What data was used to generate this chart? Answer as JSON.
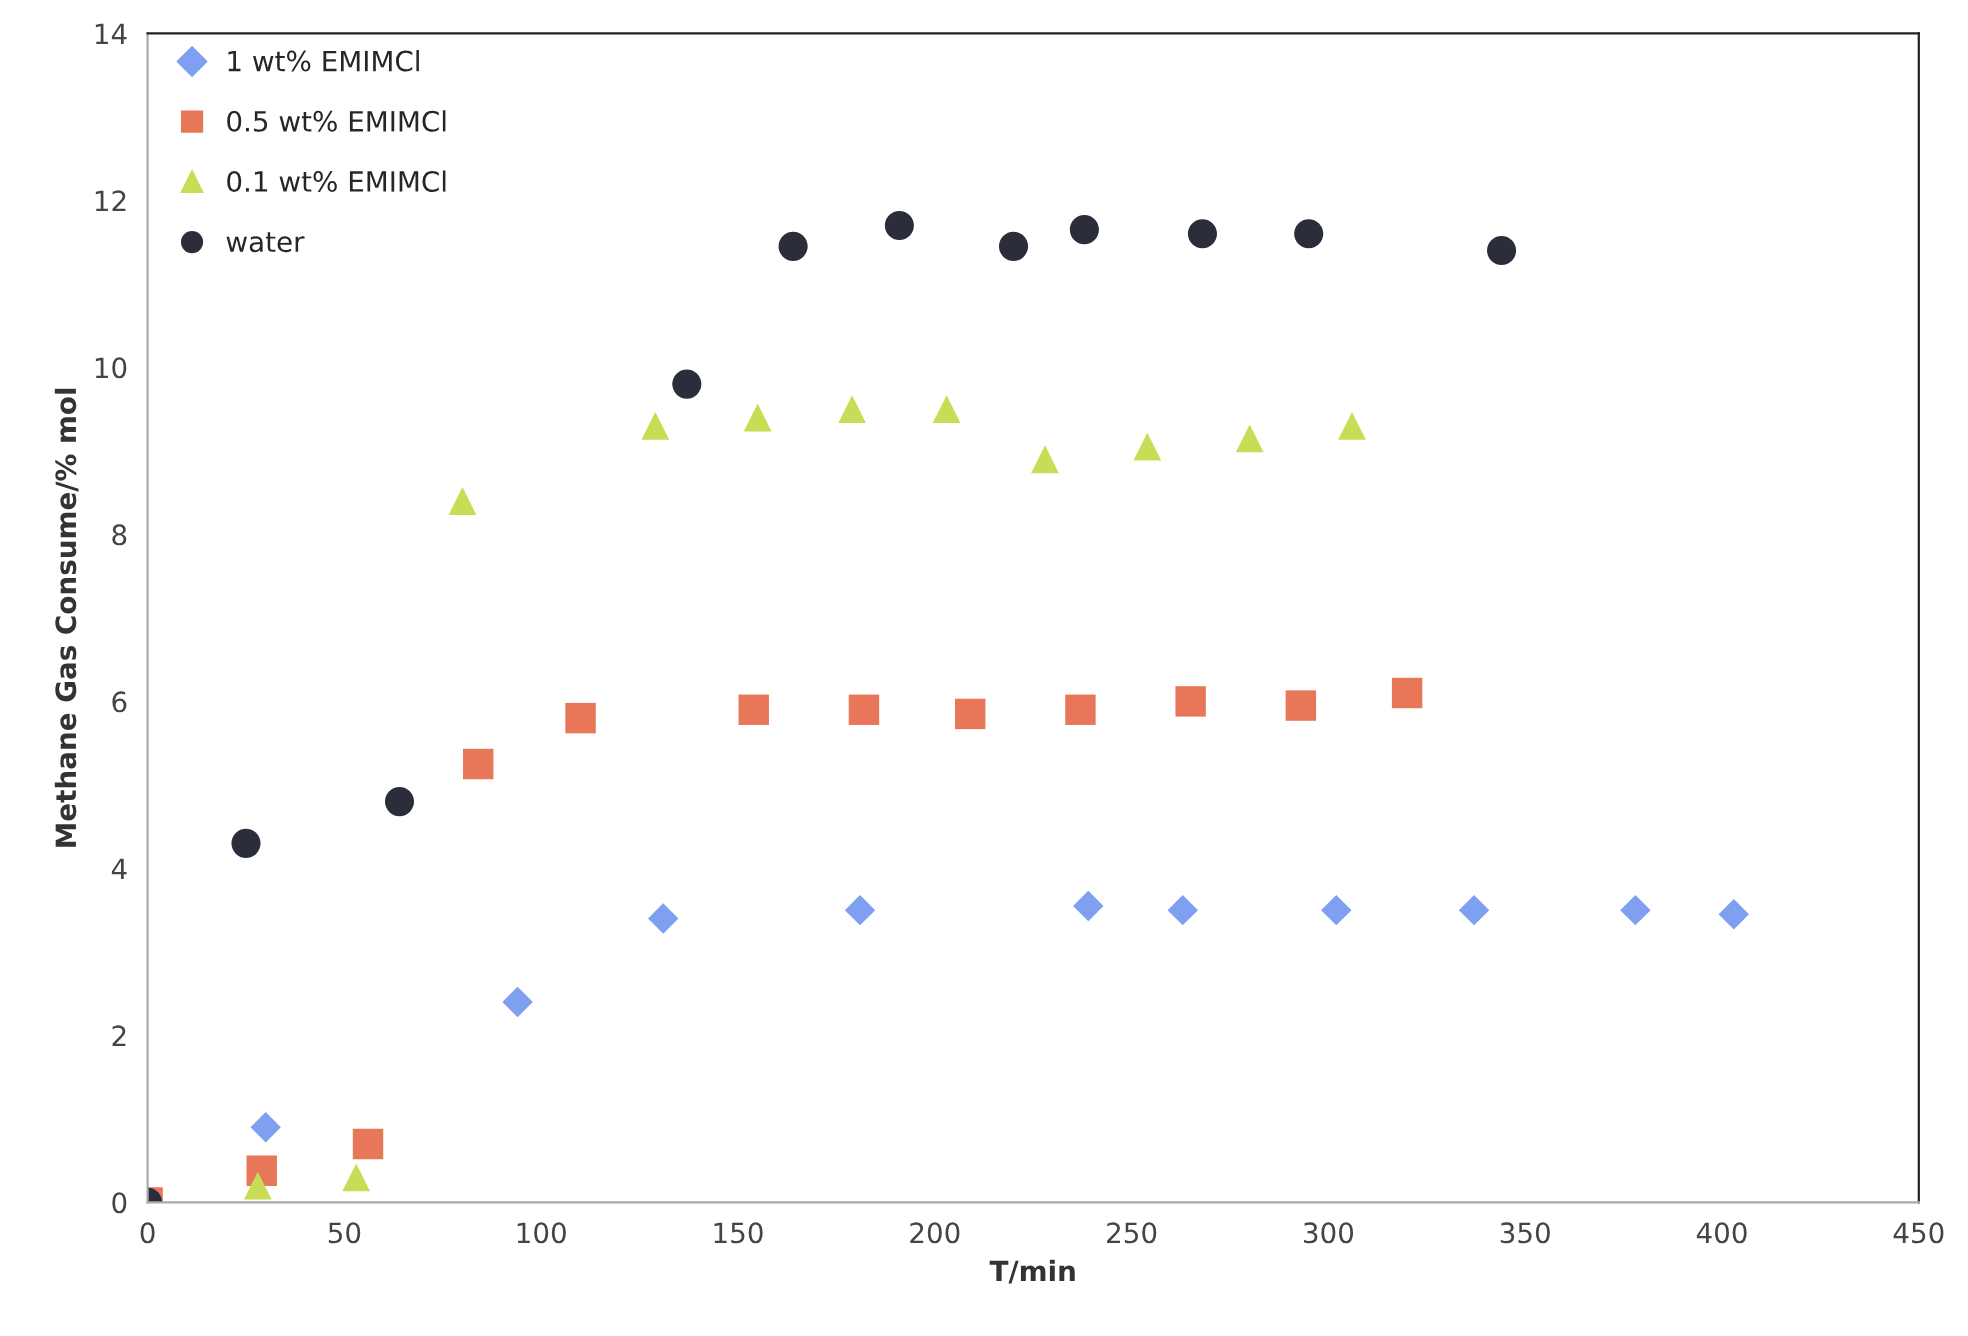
{
  "chart_data": {
    "type": "scatter",
    "xlabel": "T/min",
    "ylabel": "Methane Gas Consume/% mol",
    "xlim": [
      0,
      450
    ],
    "xticks": [
      0,
      50,
      100,
      150,
      200,
      250,
      300,
      350,
      400,
      450
    ],
    "ylim": [
      0,
      14
    ],
    "yticks": [
      0,
      2,
      4,
      6,
      8,
      10,
      12,
      14
    ],
    "grid": false,
    "legend": "top left",
    "series": [
      {
        "name": "1 wt% EMIMCl",
        "color": "#7f9ff0",
        "marker": "diamond",
        "x": [
          30,
          94,
          131,
          181,
          239,
          263,
          302,
          337,
          378,
          403
        ],
        "values": [
          0.9,
          2.4,
          3.4,
          3.5,
          3.55,
          3.5,
          3.5,
          3.5,
          3.5,
          3.45
        ]
      },
      {
        "name": "0.5 wt% EMIMCl",
        "color": "#e8775a",
        "marker": "square",
        "x": [
          0,
          29,
          56,
          84,
          110,
          154,
          182,
          209,
          237,
          265,
          293,
          320
        ],
        "values": [
          0,
          0.38,
          0.7,
          5.25,
          5.8,
          5.9,
          5.9,
          5.85,
          5.9,
          6.0,
          5.95,
          6.1
        ]
      },
      {
        "name": "0.1 wt% EMIMCl",
        "color": "#c6dd55",
        "marker": "triangle",
        "x": [
          28,
          53,
          80,
          129,
          155,
          179,
          203,
          228,
          254,
          280,
          306
        ],
        "values": [
          0.2,
          0.3,
          8.4,
          9.3,
          9.4,
          9.5,
          9.5,
          8.9,
          9.05,
          9.15,
          9.3
        ]
      },
      {
        "name": "water",
        "color": "#2b2d3a",
        "marker": "circle",
        "x": [
          0,
          25,
          64,
          137,
          164,
          191,
          220,
          238,
          268,
          295,
          344
        ],
        "values": [
          0,
          4.3,
          4.8,
          9.8,
          11.45,
          11.7,
          11.45,
          11.65,
          11.6,
          11.6,
          11.4
        ]
      }
    ]
  }
}
